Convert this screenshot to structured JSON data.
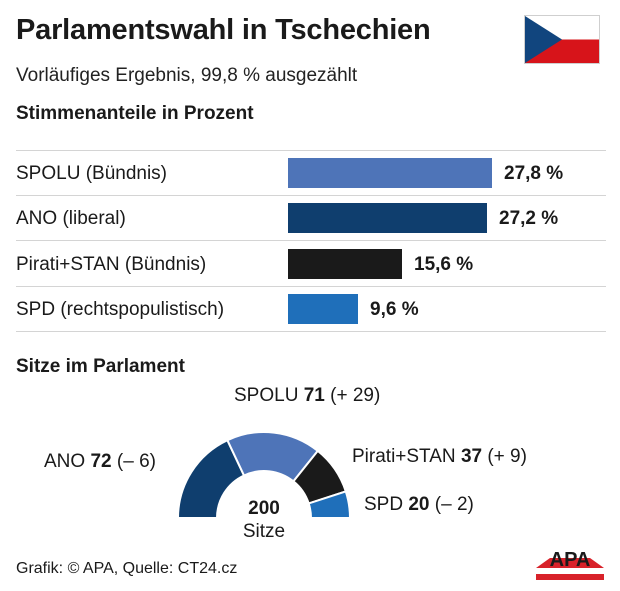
{
  "header": {
    "title": "Parlamentswahl in Tschechien",
    "subtitle": "Vorläufiges Ergebnis, 99,8 % ausgezählt"
  },
  "colors": {
    "spolu": "#4e74b8",
    "ano": "#0f3e6e",
    "pirati": "#1a1a1a",
    "spd": "#1f6fba",
    "flag_white": "#ffffff",
    "flag_red": "#d7141a",
    "flag_blue": "#11457e",
    "logo_red": "#d8222a"
  },
  "chart_data": [
    {
      "type": "bar",
      "orientation": "horizontal",
      "title": "Stimmenanteile in Prozent",
      "categories": [
        "SPOLU (Bündnis)",
        "ANO (liberal)",
        "Pirati+STAN (Bündnis)",
        "SPD (rechtspopulistisch)"
      ],
      "values": [
        27.8,
        27.2,
        15.6,
        9.6
      ],
      "value_labels": [
        "27,8 %",
        "27,2 %",
        "15,6 %",
        "9,6 %"
      ],
      "xlim": [
        0,
        30
      ]
    },
    {
      "type": "pie",
      "variant": "semicircle-parliament",
      "title": "Sitze im Parlament",
      "total": 200,
      "total_label": "Sitze",
      "order": [
        "ANO",
        "SPOLU",
        "Pirati+STAN",
        "SPD"
      ],
      "seats": [
        72,
        71,
        37,
        20
      ],
      "changes": [
        "(– 6)",
        "(+ 29)",
        "(+ 9)",
        "(– 2)"
      ]
    }
  ],
  "footer": {
    "source": "Grafik: © APA, Quelle: CT24.cz",
    "logo_text": "APA"
  }
}
